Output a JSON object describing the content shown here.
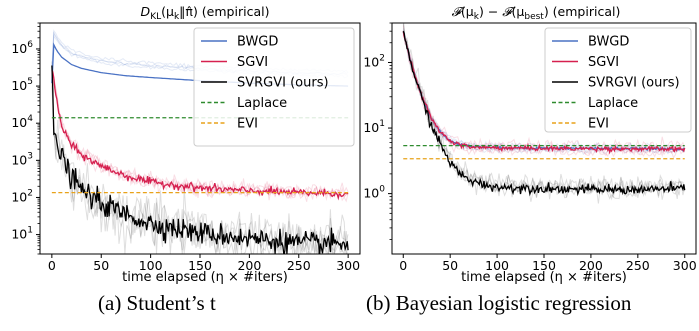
{
  "colors": {
    "BWGD": "#4a72c4",
    "SGVI": "#d6204f",
    "SVRGVI": "#000000",
    "Laplace": "#2e8b2e",
    "EVI": "#e8a21a"
  },
  "chart_data": [
    {
      "type": "line",
      "title": "D_KL(μ_k‖π̂) (empirical)",
      "title_parts": {
        "main": "D",
        "sub": "KL",
        "rest": "(μ",
        "k": "k",
        "mid": "‖",
        "pihat": "π̂",
        "end": ") (empirical)"
      },
      "xlabel": "time elapsed (η × #iters)",
      "ylabel": "",
      "xscale": "linear",
      "yscale": "log",
      "xlim": [
        -12,
        312
      ],
      "ylim": [
        3,
        5000000
      ],
      "xticks": [
        0,
        50,
        100,
        150,
        200,
        250,
        300
      ],
      "yticks": [
        10,
        100,
        1000,
        10000,
        100000,
        1000000
      ],
      "ytick_labels": [
        [
          "10",
          "1"
        ],
        [
          "10",
          "2"
        ],
        [
          "10",
          "3"
        ],
        [
          "10",
          "4"
        ],
        [
          "10",
          "5"
        ],
        [
          "10",
          "6"
        ]
      ],
      "legend_position": "top-right",
      "series": [
        {
          "name": "BWGD",
          "key": "BWGD",
          "kind": "line",
          "x": [
            0,
            2,
            5,
            10,
            20,
            30,
            50,
            75,
            100,
            150,
            200,
            250,
            300
          ],
          "y": [
            120000,
            1300000,
            900000,
            600000,
            380000,
            300000,
            230000,
            190000,
            170000,
            140000,
            120000,
            108000,
            100000
          ]
        },
        {
          "name": "SGVI",
          "key": "SGVI",
          "kind": "noisy",
          "x": [
            0,
            2,
            5,
            10,
            20,
            30,
            50,
            75,
            100,
            150,
            200,
            250,
            300
          ],
          "y": [
            300000,
            150000,
            40000,
            8000,
            2500,
            1400,
            700,
            380,
            260,
            180,
            150,
            135,
            125
          ],
          "noise": 0.12
        },
        {
          "name": "SVRGVI (ours)",
          "key": "SVRGVI",
          "kind": "noisy",
          "x": [
            0,
            2,
            5,
            10,
            20,
            30,
            50,
            75,
            100,
            150,
            200,
            250,
            300
          ],
          "y": [
            300000,
            5000,
            3000,
            1200,
            350,
            160,
            70,
            35,
            20,
            11,
            8,
            6,
            5.5
          ],
          "noise": 0.35
        },
        {
          "name": "Laplace",
          "key": "Laplace",
          "kind": "hline",
          "value": 14000
        },
        {
          "name": "EVI",
          "key": "EVI",
          "kind": "hline",
          "value": 135
        }
      ]
    },
    {
      "type": "line",
      "title": "F(μ_k) − F(μ_best) (empirical)",
      "title_parts": {
        "F": "𝓕",
        "open": "(μ",
        "k": "k",
        "close": ") − ",
        "F2": "𝓕",
        "open2": "(μ",
        "best": "best",
        "end": ") (empirical)"
      },
      "xlabel": "time elapsed (η × #iters)",
      "ylabel": "",
      "xscale": "linear",
      "yscale": "log",
      "xlim": [
        -12,
        312
      ],
      "ylim": [
        0.12,
        400
      ],
      "xticks": [
        0,
        50,
        100,
        150,
        200,
        250,
        300
      ],
      "yticks": [
        1,
        10,
        100
      ],
      "ytick_labels": [
        [
          "10",
          "0"
        ],
        [
          "10",
          "1"
        ],
        [
          "10",
          "2"
        ]
      ],
      "legend_position": "top-right",
      "series": [
        {
          "name": "BWGD",
          "key": "BWGD",
          "kind": "noisy",
          "x": [
            0,
            5,
            10,
            15,
            20,
            30,
            40,
            50,
            60,
            75,
            100,
            150,
            200,
            250,
            300
          ],
          "y": [
            300,
            150,
            80,
            48,
            30,
            14,
            8.5,
            6.5,
            5.6,
            5.2,
            5.0,
            4.95,
            4.9,
            4.85,
            4.8
          ],
          "noise": 0.02
        },
        {
          "name": "SGVI",
          "key": "SGVI",
          "kind": "noisy",
          "x": [
            0,
            5,
            10,
            15,
            20,
            30,
            40,
            50,
            60,
            75,
            100,
            150,
            200,
            250,
            300
          ],
          "y": [
            300,
            150,
            80,
            48,
            30,
            14,
            8.5,
            6.4,
            5.5,
            5.1,
            5.0,
            4.9,
            4.85,
            4.8,
            4.75
          ],
          "noise": 0.04
        },
        {
          "name": "SVRGVI (ours)",
          "key": "SVRGVI",
          "kind": "noisy",
          "x": [
            0,
            5,
            10,
            15,
            20,
            30,
            40,
            50,
            60,
            75,
            100,
            150,
            200,
            250,
            300
          ],
          "y": [
            300,
            150,
            80,
            45,
            28,
            11,
            5.5,
            3.0,
            2.0,
            1.5,
            1.25,
            1.2,
            1.15,
            1.15,
            1.2
          ],
          "noise": 0.08
        },
        {
          "name": "Laplace",
          "key": "Laplace",
          "kind": "hline",
          "value": 5.4
        },
        {
          "name": "EVI",
          "key": "EVI",
          "kind": "hline",
          "value": 3.4
        }
      ]
    }
  ],
  "captions": [
    "(a) Student’s t",
    "(b) Bayesian logistic regression"
  ]
}
